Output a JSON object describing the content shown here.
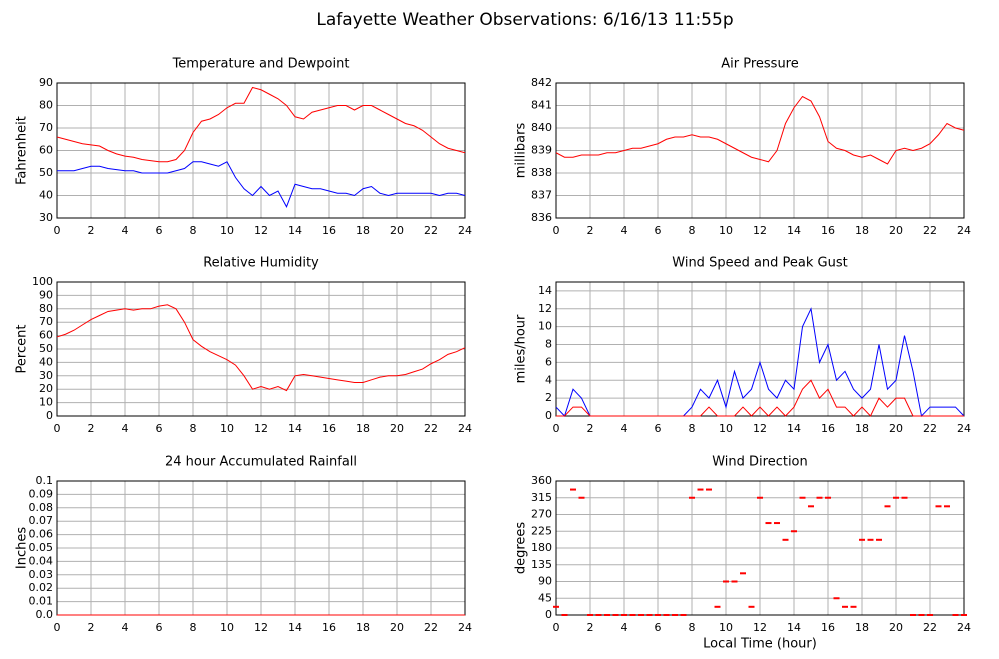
{
  "title": "Lafayette Weather Observations: 6/16/13 11:55p",
  "chart_data": [
    {
      "type": "line",
      "title": "Temperature and Dewpoint",
      "y_label": "Fahrenheit",
      "x": [
        0,
        0.5,
        1,
        1.5,
        2,
        2.5,
        3,
        3.5,
        4,
        4.5,
        5,
        5.5,
        6,
        6.5,
        7,
        7.5,
        8,
        8.5,
        9,
        9.5,
        10,
        10.5,
        11,
        11.5,
        12,
        12.5,
        13,
        13.5,
        14,
        14.5,
        15,
        15.5,
        16,
        16.5,
        17,
        17.5,
        18,
        18.5,
        19,
        19.5,
        20,
        20.5,
        21,
        21.5,
        22,
        22.5,
        23,
        23.5,
        24
      ],
      "xlim": [
        0,
        24
      ],
      "xticks": [
        0,
        2,
        4,
        6,
        8,
        10,
        12,
        14,
        16,
        18,
        20,
        22,
        24
      ],
      "ylim": [
        30,
        90
      ],
      "yticks": [
        30,
        40,
        50,
        60,
        70,
        80,
        90
      ],
      "grid": true,
      "series": [
        {
          "color": "#ff0000",
          "values": [
            66,
            65,
            64,
            63,
            62.5,
            62,
            60,
            58.5,
            57.5,
            57,
            56,
            55.5,
            55,
            55,
            56,
            60,
            68,
            73,
            74,
            76,
            79,
            81,
            81,
            88,
            87,
            85,
            83,
            80,
            75,
            74,
            77,
            78,
            79,
            80,
            80,
            78,
            80,
            80,
            78,
            76,
            74,
            72,
            71,
            69,
            66,
            63,
            61,
            60,
            59
          ]
        },
        {
          "color": "#0000ff",
          "values": [
            51,
            51,
            51,
            52,
            53,
            53,
            52,
            51.5,
            51,
            51,
            50,
            50,
            50,
            50,
            51,
            52,
            55,
            55,
            54,
            53,
            55,
            48,
            43,
            40,
            44,
            40,
            42,
            35,
            45,
            44,
            43,
            43,
            42,
            41,
            41,
            40,
            43,
            44,
            41,
            40,
            41,
            41,
            41,
            41,
            41,
            40,
            41,
            41,
            40
          ]
        }
      ]
    },
    {
      "type": "line",
      "title": "Air Pressure",
      "y_label": "millibars",
      "x": [
        0,
        0.5,
        1,
        1.5,
        2,
        2.5,
        3,
        3.5,
        4,
        4.5,
        5,
        5.5,
        6,
        6.5,
        7,
        7.5,
        8,
        8.5,
        9,
        9.5,
        10,
        10.5,
        11,
        11.5,
        12,
        12.5,
        13,
        13.5,
        14,
        14.5,
        15,
        15.5,
        16,
        16.5,
        17,
        17.5,
        18,
        18.5,
        19,
        19.5,
        20,
        20.5,
        21,
        21.5,
        22,
        22.5,
        23,
        23.5,
        24
      ],
      "xlim": [
        0,
        24
      ],
      "xticks": [
        0,
        2,
        4,
        6,
        8,
        10,
        12,
        14,
        16,
        18,
        20,
        22,
        24
      ],
      "ylim": [
        836,
        842
      ],
      "yticks": [
        836,
        837,
        838,
        839,
        840,
        841,
        842
      ],
      "grid": true,
      "series": [
        {
          "color": "#ff0000",
          "values": [
            838.9,
            838.7,
            838.7,
            838.8,
            838.8,
            838.8,
            838.9,
            838.9,
            839.0,
            839.1,
            839.1,
            839.2,
            839.3,
            839.5,
            839.6,
            839.6,
            839.7,
            839.6,
            839.6,
            839.5,
            839.3,
            839.1,
            838.9,
            838.7,
            838.6,
            838.5,
            839.0,
            840.2,
            840.9,
            841.4,
            841.2,
            840.5,
            839.4,
            839.1,
            839.0,
            838.8,
            838.7,
            838.8,
            838.6,
            838.4,
            839.0,
            839.1,
            839.0,
            839.1,
            839.3,
            839.7,
            840.2,
            840.0,
            839.9
          ]
        }
      ]
    },
    {
      "type": "line",
      "title": "Relative Humidity",
      "y_label": "Percent",
      "x": [
        0,
        0.5,
        1,
        1.5,
        2,
        2.5,
        3,
        3.5,
        4,
        4.5,
        5,
        5.5,
        6,
        6.5,
        7,
        7.5,
        8,
        8.5,
        9,
        9.5,
        10,
        10.5,
        11,
        11.5,
        12,
        12.5,
        13,
        13.5,
        14,
        14.5,
        15,
        15.5,
        16,
        16.5,
        17,
        17.5,
        18,
        18.5,
        19,
        19.5,
        20,
        20.5,
        21,
        21.5,
        22,
        22.5,
        23,
        23.5,
        24
      ],
      "xlim": [
        0,
        24
      ],
      "xticks": [
        0,
        2,
        4,
        6,
        8,
        10,
        12,
        14,
        16,
        18,
        20,
        22,
        24
      ],
      "ylim": [
        0,
        100
      ],
      "yticks": [
        0,
        10,
        20,
        30,
        40,
        50,
        60,
        70,
        80,
        90,
        100
      ],
      "grid": true,
      "series": [
        {
          "color": "#ff0000",
          "values": [
            59,
            61,
            64,
            68,
            72,
            75,
            78,
            79,
            80,
            79,
            80,
            80,
            82,
            83,
            80,
            70,
            57,
            52,
            48,
            45,
            42,
            38,
            30,
            20,
            22,
            20,
            22,
            19,
            30,
            31,
            30,
            29,
            28,
            27,
            26,
            25,
            25,
            27,
            29,
            30,
            30,
            31,
            33,
            35,
            39,
            42,
            46,
            48,
            51
          ]
        }
      ]
    },
    {
      "type": "line",
      "title": "Wind Speed and Peak Gust",
      "y_label": "miles/hour",
      "x": [
        0,
        0.5,
        1,
        1.5,
        2,
        2.5,
        3,
        3.5,
        4,
        4.5,
        5,
        5.5,
        6,
        6.5,
        7,
        7.5,
        8,
        8.5,
        9,
        9.5,
        10,
        10.5,
        11,
        11.5,
        12,
        12.5,
        13,
        13.5,
        14,
        14.5,
        15,
        15.5,
        16,
        16.5,
        17,
        17.5,
        18,
        18.5,
        19,
        19.5,
        20,
        20.5,
        21,
        21.5,
        22,
        22.5,
        23,
        23.5,
        24
      ],
      "xlim": [
        0,
        24
      ],
      "xticks": [
        0,
        2,
        4,
        6,
        8,
        10,
        12,
        14,
        16,
        18,
        20,
        22,
        24
      ],
      "ylim": [
        0,
        15
      ],
      "yticks": [
        0,
        2,
        4,
        6,
        8,
        10,
        12,
        14
      ],
      "grid": true,
      "series": [
        {
          "color": "#0000ff",
          "values": [
            1,
            0,
            3,
            2,
            0,
            0,
            0,
            0,
            0,
            0,
            0,
            0,
            0,
            0,
            0,
            0,
            1,
            3,
            2,
            4,
            1,
            5,
            2,
            3,
            6,
            3,
            2,
            4,
            3,
            10,
            12,
            6,
            8,
            4,
            5,
            3,
            2,
            3,
            8,
            3,
            4,
            9,
            5,
            0,
            1,
            1,
            1,
            1,
            0
          ]
        },
        {
          "color": "#ff0000",
          "values": [
            0,
            0,
            1,
            1,
            0,
            0,
            0,
            0,
            0,
            0,
            0,
            0,
            0,
            0,
            0,
            0,
            0,
            0,
            1,
            0,
            0,
            0,
            1,
            0,
            1,
            0,
            1,
            0,
            1,
            3,
            4,
            2,
            3,
            1,
            1,
            0,
            1,
            0,
            2,
            1,
            2,
            2,
            0,
            0,
            0,
            0,
            0,
            0,
            0
          ]
        }
      ]
    },
    {
      "type": "line",
      "title": "24 hour Accumulated Rainfall",
      "y_label": "Inches",
      "x": [
        0,
        0.5,
        1,
        1.5,
        2,
        2.5,
        3,
        3.5,
        4,
        4.5,
        5,
        5.5,
        6,
        6.5,
        7,
        7.5,
        8,
        8.5,
        9,
        9.5,
        10,
        10.5,
        11,
        11.5,
        12,
        12.5,
        13,
        13.5,
        14,
        14.5,
        15,
        15.5,
        16,
        16.5,
        17,
        17.5,
        18,
        18.5,
        19,
        19.5,
        20,
        20.5,
        21,
        21.5,
        22,
        22.5,
        23,
        23.5,
        24
      ],
      "xlim": [
        0,
        24
      ],
      "xticks": [
        0,
        2,
        4,
        6,
        8,
        10,
        12,
        14,
        16,
        18,
        20,
        22,
        24
      ],
      "ylim": [
        0,
        0.1
      ],
      "yticks": [
        {
          "value": 0,
          "label": "0.0"
        },
        0.01,
        0.02,
        0.03,
        0.04,
        0.05,
        0.06,
        0.07,
        0.08,
        0.09,
        0.1
      ],
      "grid": true,
      "series": [
        {
          "color": "#ff0000",
          "values": [
            0,
            0,
            0,
            0,
            0,
            0,
            0,
            0,
            0,
            0,
            0,
            0,
            0,
            0,
            0,
            0,
            0,
            0,
            0,
            0,
            0,
            0,
            0,
            0,
            0,
            0,
            0,
            0,
            0,
            0,
            0,
            0,
            0,
            0,
            0,
            0,
            0,
            0,
            0,
            0,
            0,
            0,
            0,
            0,
            0,
            0,
            0,
            0,
            0
          ]
        }
      ]
    },
    {
      "type": "scatter",
      "title": "Wind Direction",
      "y_label": "degrees",
      "x_label": "Local Time (hour)",
      "x": [
        0,
        0.5,
        1,
        1.5,
        2,
        2.5,
        3,
        3.5,
        4,
        4.5,
        5,
        5.5,
        6,
        6.5,
        7,
        7.5,
        8,
        8.5,
        9,
        9.5,
        10,
        10.5,
        11,
        11.5,
        12,
        12.5,
        13,
        13.5,
        14,
        14.5,
        15,
        15.5,
        16,
        16.5,
        17,
        17.5,
        18,
        18.5,
        19,
        19.5,
        20,
        20.5,
        21,
        21.5,
        22,
        22.5,
        23,
        23.5,
        24
      ],
      "xlim": [
        0,
        24
      ],
      "xticks": [
        0,
        2,
        4,
        6,
        8,
        10,
        12,
        14,
        16,
        18,
        20,
        22,
        24
      ],
      "ylim": [
        0,
        360
      ],
      "yticks": [
        0,
        45,
        90,
        135,
        180,
        225,
        270,
        315,
        360
      ],
      "grid": true,
      "series": [
        {
          "color": "#ff0000",
          "values": [
            22,
            0,
            337,
            315,
            0,
            0,
            0,
            0,
            0,
            0,
            0,
            0,
            0,
            0,
            0,
            0,
            315,
            337,
            337,
            22,
            90,
            90,
            112,
            22,
            315,
            247,
            247,
            202,
            225,
            315,
            292,
            315,
            315,
            45,
            22,
            22,
            202,
            202,
            202,
            292,
            315,
            315,
            0,
            0,
            0,
            292,
            292,
            0,
            0
          ]
        }
      ]
    }
  ]
}
